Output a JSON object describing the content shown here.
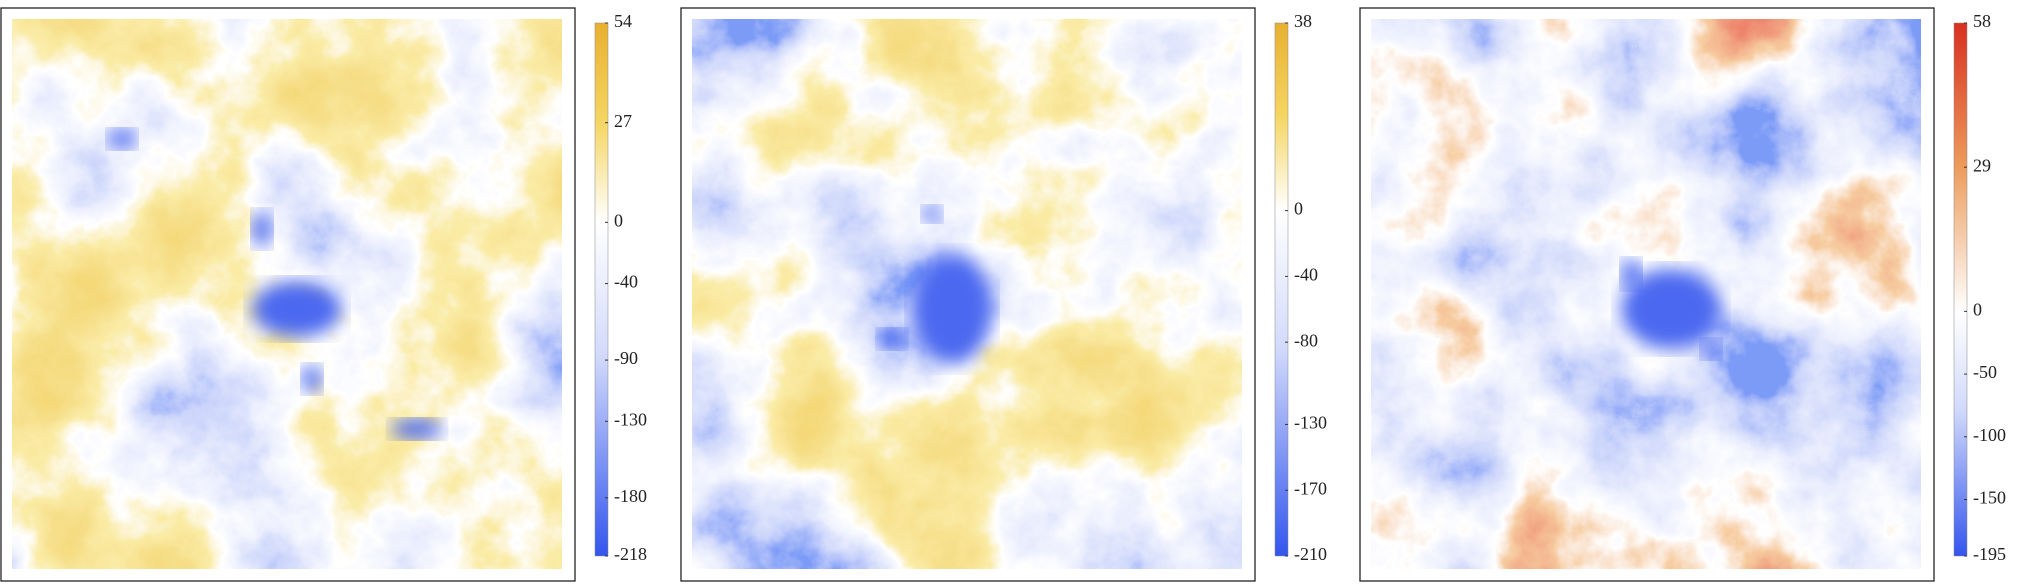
{
  "chart_data": [
    {
      "type": "heatmap",
      "clim": [
        -218,
        54
      ],
      "cticks": [
        54,
        27,
        0,
        -40,
        -90,
        -130,
        -180,
        -218
      ],
      "colormap": [
        "#3355ee",
        "#ffffff",
        "#e8b030"
      ]
    },
    {
      "type": "heatmap",
      "clim": [
        -210,
        38
      ],
      "cticks": [
        38,
        0,
        -40,
        -80,
        -130,
        -170,
        -210
      ],
      "colormap": [
        "#3355ee",
        "#ffffff",
        "#e8b030"
      ]
    },
    {
      "type": "heatmap",
      "clim": [
        -195,
        58
      ],
      "cticks": [
        58,
        29,
        0,
        -50,
        -100,
        -150,
        -195
      ],
      "colormap": [
        "#3355ee",
        "#ffffff",
        "#d83020"
      ]
    }
  ]
}
